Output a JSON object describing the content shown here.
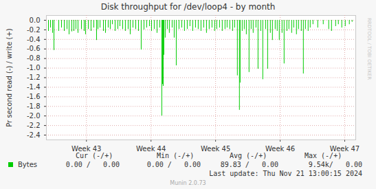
{
  "chart_data": {
    "type": "bar",
    "title": "Disk throughput for /dev/loop4 - by month",
    "y_label": "Pr second read (-) / write (+)",
    "x": [
      42.412,
      42.444,
      42.476,
      42.497,
      42.571,
      42.614,
      42.657,
      42.699,
      42.731,
      42.774,
      42.806,
      42.837,
      42.869,
      42.923,
      42.965,
      42.986,
      43.029,
      43.071,
      43.114,
      43.157,
      43.178,
      43.21,
      43.263,
      43.295,
      43.337,
      43.369,
      43.401,
      43.444,
      43.486,
      43.518,
      43.561,
      43.603,
      43.646,
      43.678,
      43.72,
      43.763,
      43.806,
      43.848,
      43.891,
      43.933,
      43.976,
      44.008,
      44.05,
      44.093,
      44.135,
      44.167,
      44.178,
      44.189,
      44.199,
      44.22,
      44.252,
      44.284,
      44.327,
      44.359,
      44.391,
      44.433,
      44.476,
      44.518,
      44.561,
      44.603,
      44.646,
      44.689,
      44.731,
      44.774,
      44.816,
      44.859,
      44.901,
      44.944,
      44.986,
      45.018,
      45.061,
      45.103,
      45.146,
      45.178,
      45.22,
      45.263,
      45.295,
      45.337,
      45.369,
      45.38,
      45.412,
      45.444,
      45.476,
      45.518,
      45.55,
      45.582,
      45.625,
      45.657,
      45.699,
      45.731,
      45.774,
      45.806,
      45.848,
      45.88,
      45.923,
      45.954,
      45.986,
      46.029,
      46.061,
      46.103,
      46.135,
      46.178,
      46.21,
      46.252,
      46.284,
      46.327,
      46.359,
      46.391,
      46.433,
      46.465,
      46.508,
      46.582,
      46.667,
      46.752,
      46.795,
      46.859,
      46.901,
      46.954,
      47.008,
      47.071,
      47.114
    ],
    "series": [
      {
        "name": "Bytes",
        "color": "#00cc00",
        "values": [
          -0.23,
          -0.16,
          -0.27,
          -0.63,
          -0.23,
          -0.16,
          -0.23,
          -0.19,
          -0.3,
          -0.24,
          -0.23,
          -0.19,
          -0.27,
          -0.19,
          -0.23,
          -0.3,
          -0.19,
          -0.23,
          -0.16,
          -0.42,
          -0.19,
          -0.16,
          -0.23,
          -0.27,
          -0.16,
          -0.19,
          -0.09,
          -0.23,
          -0.19,
          -0.13,
          -0.19,
          -0.23,
          -0.19,
          -0.3,
          -0.16,
          -0.19,
          -0.23,
          -0.62,
          -0.2,
          -0.16,
          -0.13,
          -0.23,
          -0.19,
          -0.27,
          -0.16,
          -2.0,
          -1.34,
          -1.38,
          -0.73,
          -0.37,
          -0.19,
          -0.27,
          -0.16,
          -0.37,
          -0.95,
          -0.19,
          -0.16,
          -0.23,
          -0.19,
          -0.13,
          -0.23,
          -0.16,
          -0.19,
          -0.23,
          -0.16,
          -0.27,
          -0.19,
          -0.16,
          -0.23,
          -0.19,
          -0.16,
          -0.23,
          -0.19,
          -0.16,
          -0.19,
          -0.23,
          -0.16,
          -1.16,
          -1.88,
          -1.31,
          -0.23,
          -0.19,
          -0.3,
          -1.09,
          -0.19,
          -0.27,
          -0.16,
          -1.02,
          -0.23,
          -1.24,
          -0.19,
          -1.02,
          -0.27,
          -0.42,
          -0.19,
          -0.23,
          -0.42,
          -0.27,
          -0.91,
          -0.23,
          -0.19,
          -0.27,
          -0.16,
          -0.3,
          -0.19,
          -0.23,
          -1.12,
          -0.19,
          -0.23,
          -0.16,
          -0.09,
          -0.16,
          -0.09,
          -0.19,
          -0.23,
          -0.13,
          -0.09,
          -0.16,
          -0.13,
          -0.09,
          -0.04
        ],
        "stats": [
          "0.00 /   0.00",
          "0.00 /   0.00",
          "89.83 /   0.00",
          "9.54k/   0.00"
        ]
      }
    ],
    "xlim": [
      42.38,
      47.17
    ],
    "xticks": [
      {
        "value": 43,
        "label": "Week 43"
      },
      {
        "value": 44,
        "label": "Week 44"
      },
      {
        "value": 45,
        "label": "Week 45"
      },
      {
        "value": 46,
        "label": "Week 46"
      },
      {
        "value": 47,
        "label": "Week 47"
      }
    ],
    "ylim": [
      -2.5,
      0.1
    ],
    "yticks": [
      {
        "value": 0,
        "label": "0.0"
      },
      -0.2,
      -0.4,
      -0.6,
      -0.8,
      {
        "value": -1,
        "label": "-1.0"
      },
      -1.2,
      -1.4,
      -1.6,
      -1.8,
      {
        "value": -2,
        "label": "-2.0"
      },
      -2.2,
      -2.4
    ],
    "grid": true,
    "legend": "bottom",
    "stats_columns": [
      "Cur (-/+)",
      "Min (-/+)",
      "Avg (-/+)",
      "Max (-/+)"
    ],
    "footer": "Last update: Thu Nov 21 13:00:15 2024",
    "credit": "Munin 2.0.73",
    "watermark": "RRDTOOL / TOBI OETIKER"
  }
}
